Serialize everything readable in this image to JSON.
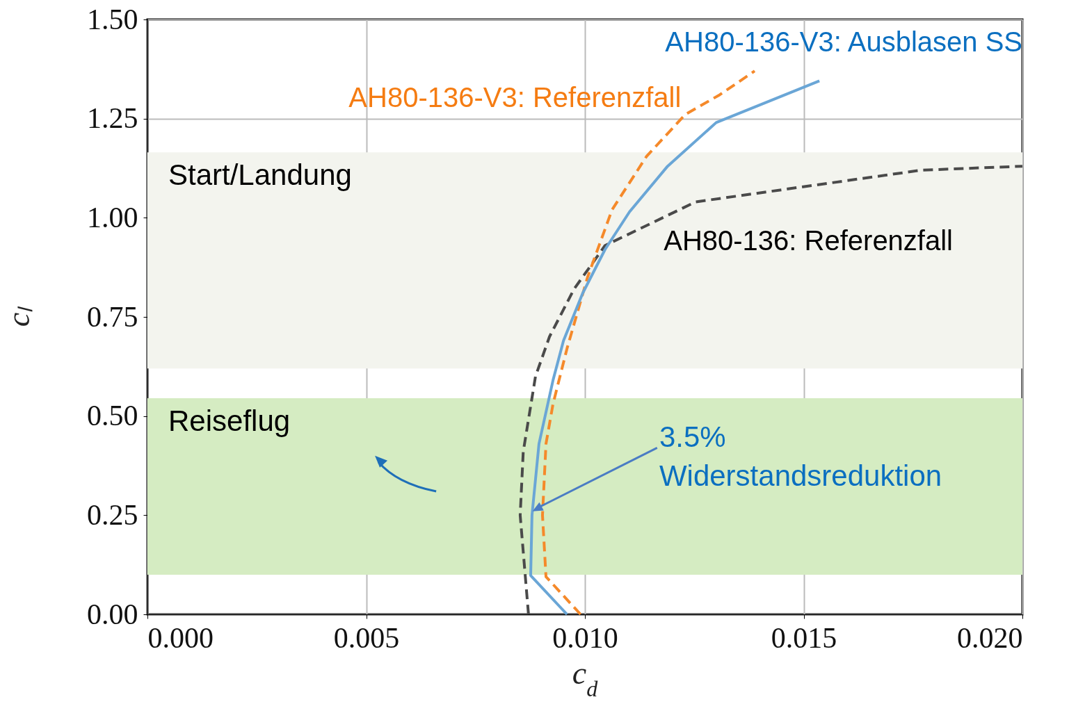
{
  "chart_data": {
    "type": "line",
    "xlabel": "c$_{d}$",
    "ylabel": "cₗ",
    "xlim": [
      0,
      0.02
    ],
    "ylim": [
      0,
      1.5
    ],
    "xticks": [
      {
        "value": 0,
        "label": "0.000"
      },
      {
        "value": 0.005,
        "label": "0.005"
      },
      {
        "value": 0.01,
        "label": "0.010"
      },
      {
        "value": 0.015,
        "label": "0.015"
      },
      {
        "value": 0.02,
        "label": "0.020"
      }
    ],
    "yticks": [
      {
        "value": 0,
        "label": "0.00"
      },
      {
        "value": 0.25,
        "label": "0.25"
      },
      {
        "value": 0.5,
        "label": "0.50"
      },
      {
        "value": 0.75,
        "label": "0.75"
      },
      {
        "value": 1,
        "label": "1.00"
      },
      {
        "value": 1.25,
        "label": "1.25"
      },
      {
        "value": 1.5,
        "label": "1.50"
      }
    ],
    "grid": true,
    "marker": "none",
    "series": [
      {
        "name": "AH80-136: Referenzfall",
        "color": "#4a4a4a",
        "line_style": "dashed",
        "x": [
          0.00871,
          0.00852,
          0.00859,
          0.00887,
          0.00919,
          0.00975,
          0.01046,
          0.01253,
          0.01769,
          0.02
        ],
        "values": [
          0,
          0.25,
          0.41,
          0.6,
          0.7,
          0.82,
          0.93,
          1.04,
          1.12,
          1.13
        ]
      },
      {
        "name": "AH80-136-V3: Referenzfall",
        "color": "#f5892a",
        "line_style": "dashed",
        "x": [
          0.0099,
          0.00911,
          0.00903,
          0.00911,
          0.00927,
          0.00959,
          0.01006,
          0.01062,
          0.01141,
          0.01229,
          0.01308,
          0.01388
        ],
        "values": [
          0,
          0.095,
          0.25,
          0.43,
          0.53,
          0.67,
          0.85,
          1.02,
          1.155,
          1.26,
          1.31,
          1.37
        ]
      },
      {
        "name": "AH80-136-V3: Ausblasen SS",
        "color": "#6aa6d6",
        "line_style": "solid",
        "x": [
          0.00959,
          0.00876,
          0.00879,
          0.00895,
          0.00927,
          0.00951,
          0.00995,
          0.01046,
          0.01102,
          0.01189,
          0.013,
          0.01536
        ],
        "values": [
          0,
          0.098,
          0.25,
          0.43,
          0.59,
          0.69,
          0.81,
          0.92,
          1.015,
          1.13,
          1.24,
          1.345
        ]
      }
    ],
    "bands": [
      {
        "axis": "y",
        "from": 0.1,
        "to": 0.545,
        "label": "Reiseflug",
        "color": "#d5ecc2"
      },
      {
        "axis": "y",
        "from": 0.62,
        "to": 1.165,
        "label": "Start/Landung",
        "color": "#f3f4ee"
      }
    ],
    "annotations": [
      {
        "text": "3.5% Widerstandsreduktion",
        "x": 0.0088,
        "y": 0.26
      }
    ]
  }
}
